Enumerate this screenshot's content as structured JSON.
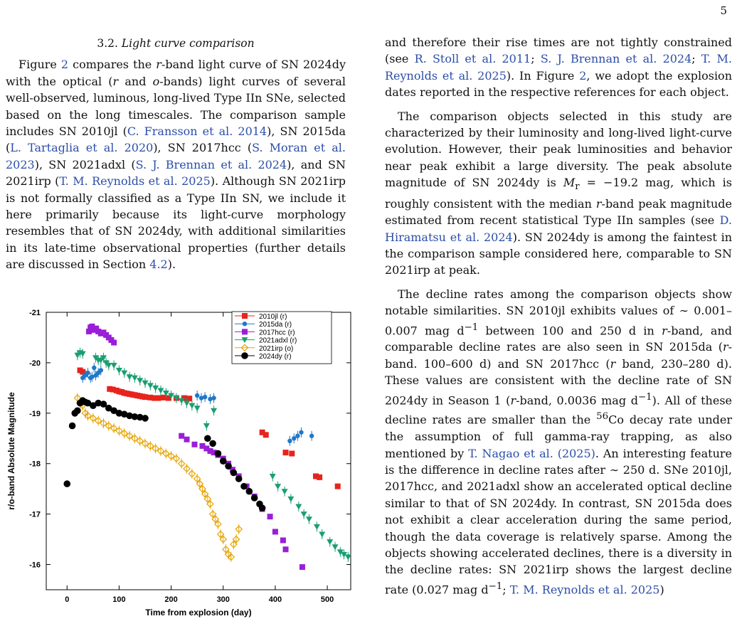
{
  "page_number": "5",
  "section": {
    "number": "3.2.",
    "title": "Light curve comparison"
  },
  "left_paragraph": [
    {
      "t": "Figure "
    },
    {
      "t": "2",
      "c": 1
    },
    {
      "t": " compares the "
    },
    {
      "t": "r",
      "i": 1
    },
    {
      "t": "-band light curve of SN 2024dy with the optical ("
    },
    {
      "t": "r",
      "i": 1
    },
    {
      "t": " and "
    },
    {
      "t": "o",
      "i": 1
    },
    {
      "t": "-bands) light curves of several well-observed, luminous, long-lived Type IIn SNe, selected based on the long timescales. The comparison sample includes SN 2010jl ("
    },
    {
      "t": "C. Fransson et al. 2014",
      "c": 1
    },
    {
      "t": "), SN 2015da ("
    },
    {
      "t": "L. Tartaglia et al. 2020",
      "c": 1
    },
    {
      "t": "), SN 2017hcc ("
    },
    {
      "t": "S. Moran et al. 2023",
      "c": 1
    },
    {
      "t": "), SN 2021adxl ("
    },
    {
      "t": "S. J. Brennan et al. 2024",
      "c": 1
    },
    {
      "t": "), and SN 2021irp ("
    },
    {
      "t": "T. M. Reynolds et al. 2025",
      "c": 1
    },
    {
      "t": "). Although SN 2021irp is not formally classified as a Type IIn SN, we include it here primarily because its light-curve morphology resembles that of SN 2024dy, with additional similarities in its late-time observational properties (further details are discussed in Section "
    },
    {
      "t": "4.2",
      "c": 1
    },
    {
      "t": ")."
    }
  ],
  "right_paragraphs": [
    [
      {
        "t": "and therefore their rise times are not tightly constrained (see "
      },
      {
        "t": "R. Stoll et al. 2011",
        "c": 1
      },
      {
        "t": "; "
      },
      {
        "t": "S. J. Brennan et al. 2024",
        "c": 1
      },
      {
        "t": "; "
      },
      {
        "t": "T. M. Reynolds et al. 2025",
        "c": 1
      },
      {
        "t": "). In Figure "
      },
      {
        "t": "2",
        "c": 1
      },
      {
        "t": ", we adopt the explosion dates reported in the respective references for each object."
      }
    ],
    [
      {
        "t": "The comparison objects selected in this study are characterized by their luminosity and long-lived light-curve evolution. However, their peak luminosities and behavior near peak exhibit a large diversity. The peak absolute magnitude of SN 2024dy is "
      },
      {
        "t": "M",
        "i": 1
      },
      {
        "t": "r",
        "sub": 1
      },
      {
        "t": " = −19.2 mag, which is roughly consistent with the median "
      },
      {
        "t": "r",
        "i": 1
      },
      {
        "t": "-band peak magnitude estimated from recent statistical Type IIn samples (see "
      },
      {
        "t": "D. Hiramatsu et al. 2024",
        "c": 1
      },
      {
        "t": "). SN 2024dy is among the faintest in the comparison sample considered here, comparable to SN 2021irp at peak."
      }
    ],
    [
      {
        "t": "The decline rates among the comparison objects show notable similarities. SN 2010jl exhibits values of ∼ 0.001–0.007 mag d"
      },
      {
        "t": "−1",
        "sup": 1
      },
      {
        "t": " between 100 and 250 d in "
      },
      {
        "t": "r",
        "i": 1
      },
      {
        "t": "-band, and comparable decline rates are also seen in SN 2015da ("
      },
      {
        "t": "r",
        "i": 1
      },
      {
        "t": "-band. 100–600 d) and SN 2017hcc ("
      },
      {
        "t": "r",
        "i": 1
      },
      {
        "t": " band, 230–280 d). These values are consistent with the decline rate of SN 2024dy in Season 1 ("
      },
      {
        "t": "r",
        "i": 1
      },
      {
        "t": "-band, 0.0036 mag d"
      },
      {
        "t": "−1",
        "sup": 1
      },
      {
        "t": "). All of these decline rates are smaller than the "
      },
      {
        "t": "56",
        "sup": 1
      },
      {
        "t": "Co decay rate under the assumption of full gamma-ray trapping, as also mentioned by "
      },
      {
        "t": "T. Nagao et al. (2025)",
        "c": 1
      },
      {
        "t": ". An interesting feature is the difference in decline rates after ∼ 250 d. SNe 2010jl, 2017hcc, and 2021adxl show an accelerated optical decline similar to that of SN 2024dy. In contrast, SN 2015da does not exhibit a clear acceleration during the same period, though the data coverage is relatively sparse. Among the objects showing accelerated declines, there is a diversity in the decline rates: SN 2021irp shows the largest decline rate (0.027 mag d"
      },
      {
        "t": "−1",
        "sup": 1
      },
      {
        "t": "; "
      },
      {
        "t": "T. M. Reynolds et al. 2025",
        "c": 1
      },
      {
        "t": ")"
      }
    ]
  ],
  "colors": {
    "citation": "#2c4ea8"
  },
  "chart_data": {
    "type": "scatter",
    "xlabel": "Time from explosion (day)",
    "ylabel": "r/o-band Absolute Magnitude",
    "xlim": [
      -40,
      545
    ],
    "ylim": [
      -21,
      -15.5
    ],
    "y_inverted": true,
    "xticks": [
      0,
      100,
      200,
      300,
      400,
      500
    ],
    "yticks": [
      -21,
      -20,
      -19,
      -18,
      -17,
      -16
    ],
    "legend_position": "top-right",
    "series": [
      {
        "name": "2010jl (r)",
        "color": "#e8231c",
        "marker": "square",
        "errorbars": false,
        "x": [
          25,
          30,
          35,
          82,
          88,
          95,
          100,
          105,
          110,
          115,
          120,
          125,
          130,
          135,
          140,
          145,
          150,
          160,
          168,
          175,
          185,
          195,
          210,
          225,
          235,
          375,
          382,
          420,
          432,
          478,
          485,
          520
        ],
        "y": [
          -19.85,
          -19.82,
          -19.78,
          -19.48,
          -19.47,
          -19.45,
          -19.43,
          -19.42,
          -19.4,
          -19.39,
          -19.38,
          -19.37,
          -19.36,
          -19.35,
          -19.34,
          -19.33,
          -19.32,
          -19.31,
          -19.3,
          -19.3,
          -19.31,
          -19.3,
          -19.3,
          -19.3,
          -19.29,
          -18.62,
          -18.57,
          -18.22,
          -18.2,
          -17.75,
          -17.73,
          -17.55
        ]
      },
      {
        "name": "2015da (r)",
        "color": "#1f78c8",
        "marker": "circle",
        "errorbars": true,
        "x": [
          30,
          35,
          40,
          45,
          48,
          52,
          55,
          60,
          65,
          250,
          258,
          265,
          275,
          282,
          428,
          436,
          443,
          450,
          470
        ],
        "y": [
          -19.7,
          -19.75,
          -19.8,
          -19.7,
          -19.72,
          -19.9,
          -19.75,
          -19.8,
          -19.85,
          -19.35,
          -19.3,
          -19.32,
          -19.28,
          -19.3,
          -18.45,
          -18.5,
          -18.55,
          -18.62,
          -18.55
        ]
      },
      {
        "name": "2017hcc (r)",
        "color": "#9a1ed8",
        "marker": "square",
        "errorbars": false,
        "x": [
          42,
          45,
          48,
          52,
          56,
          60,
          65,
          70,
          75,
          80,
          85,
          90,
          220,
          230,
          245,
          260,
          268,
          275,
          282,
          290,
          300,
          310,
          318,
          330,
          345,
          360,
          375,
          390,
          400,
          415,
          420,
          452
        ],
        "y": [
          -20.62,
          -20.7,
          -20.72,
          -20.65,
          -20.68,
          -20.62,
          -20.58,
          -20.6,
          -20.55,
          -20.5,
          -20.45,
          -20.4,
          -18.55,
          -18.48,
          -18.38,
          -18.35,
          -18.3,
          -18.25,
          -18.22,
          -18.17,
          -18.1,
          -18.0,
          -17.88,
          -17.75,
          -17.55,
          -17.35,
          -17.1,
          -16.95,
          -16.65,
          -16.48,
          -16.3,
          -15.95
        ]
      },
      {
        "name": "2021adxl (r)",
        "color": "#1a9e72",
        "marker": "triangle-down",
        "errorbars": true,
        "x": [
          20,
          25,
          30,
          55,
          60,
          65,
          70,
          75,
          80,
          90,
          100,
          110,
          120,
          130,
          140,
          150,
          160,
          170,
          180,
          190,
          200,
          210,
          220,
          230,
          240,
          250,
          268,
          282,
          395,
          405,
          418,
          430,
          445,
          455,
          465,
          480,
          490,
          505,
          515,
          525,
          532,
          540
        ],
        "y": [
          -20.15,
          -20.2,
          -20.18,
          -20.1,
          -20.05,
          -20.05,
          -20.1,
          -20.0,
          -19.95,
          -19.95,
          -19.85,
          -19.8,
          -19.72,
          -19.7,
          -19.65,
          -19.6,
          -19.55,
          -19.5,
          -19.45,
          -19.4,
          -19.35,
          -19.3,
          -19.25,
          -19.2,
          -19.15,
          -19.1,
          -18.75,
          -19.05,
          -17.75,
          -17.55,
          -17.45,
          -17.3,
          -17.15,
          -17.0,
          -16.9,
          -16.75,
          -16.6,
          -16.45,
          -16.35,
          -16.25,
          -16.2,
          -16.15
        ]
      },
      {
        "name": "2021irp (o)",
        "color": "#e8a400",
        "marker": "diamond-open",
        "errorbars": true,
        "x": [
          20,
          25,
          30,
          35,
          40,
          50,
          60,
          70,
          80,
          90,
          100,
          110,
          120,
          130,
          140,
          150,
          160,
          170,
          180,
          190,
          200,
          210,
          220,
          230,
          240,
          250,
          255,
          260,
          265,
          270,
          275,
          280,
          285,
          290,
          295,
          300,
          305,
          310,
          315,
          320,
          325,
          330
        ],
        "y": [
          -19.3,
          -19.2,
          -19.15,
          -19.0,
          -18.95,
          -18.9,
          -18.85,
          -18.8,
          -18.75,
          -18.7,
          -18.65,
          -18.6,
          -18.55,
          -18.5,
          -18.45,
          -18.4,
          -18.35,
          -18.3,
          -18.25,
          -18.2,
          -18.15,
          -18.1,
          -18.0,
          -17.9,
          -17.8,
          -17.7,
          -17.6,
          -17.5,
          -17.4,
          -17.3,
          -17.2,
          -17.0,
          -16.9,
          -16.8,
          -16.6,
          -16.5,
          -16.3,
          -16.2,
          -16.15,
          -16.4,
          -16.5,
          -16.7
        ]
      },
      {
        "name": "2024dy (r)",
        "color": "#000000",
        "marker": "circle",
        "errorbars": false,
        "x": [
          0,
          10,
          15,
          20,
          25,
          30,
          35,
          40,
          50,
          60,
          70,
          80,
          90,
          100,
          110,
          120,
          130,
          140,
          150,
          270,
          280,
          290,
          300,
          310,
          320,
          330,
          340,
          350,
          360,
          370,
          375
        ],
        "y": [
          -17.6,
          -18.75,
          -19.0,
          -19.05,
          -19.2,
          -19.25,
          -19.22,
          -19.2,
          -19.15,
          -19.2,
          -19.18,
          -19.1,
          -19.05,
          -19.0,
          -18.98,
          -18.95,
          -18.93,
          -18.92,
          -18.9,
          -18.5,
          -18.4,
          -18.2,
          -18.05,
          -17.95,
          -17.82,
          -17.7,
          -17.55,
          -17.45,
          -17.32,
          -17.2,
          -17.12
        ]
      }
    ]
  }
}
